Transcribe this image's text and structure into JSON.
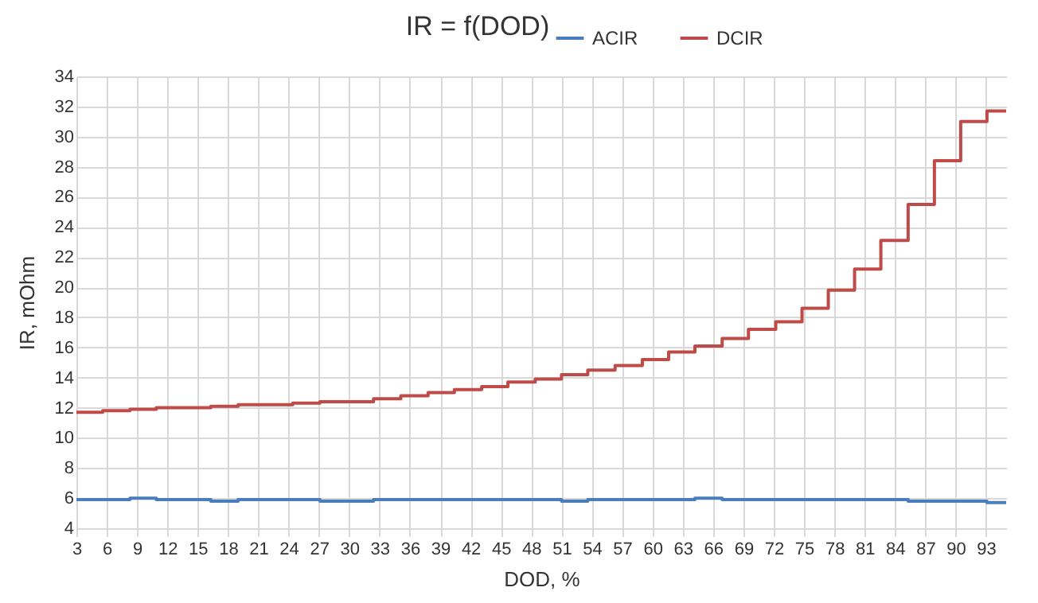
{
  "chart_data": {
    "type": "step",
    "title": "IR = f(DOD)",
    "xlabel": "DOD, %",
    "ylabel": "IR, mOhm",
    "x": [
      3,
      5.6,
      8.3,
      10.9,
      13.6,
      16.3,
      19,
      21.7,
      24.4,
      27.1,
      29.8,
      32.4,
      35.1,
      37.8,
      40.4,
      43.1,
      45.7,
      48.4,
      51,
      53.6,
      56.3,
      59,
      61.6,
      64.2,
      66.9,
      69.5,
      72.2,
      74.8,
      77.4,
      80,
      82.6,
      85.3,
      87.9,
      90.5,
      93.1,
      95
    ],
    "series": [
      {
        "name": "ACIR",
        "color": "#4a7ebb",
        "values": [
          5.9,
          5.9,
          6.0,
          5.9,
          5.9,
          5.8,
          5.9,
          5.9,
          5.9,
          5.8,
          5.8,
          5.9,
          5.9,
          5.9,
          5.9,
          5.9,
          5.9,
          5.9,
          5.8,
          5.9,
          5.9,
          5.9,
          5.9,
          6.0,
          5.9,
          5.9,
          5.9,
          5.9,
          5.9,
          5.9,
          5.9,
          5.8,
          5.8,
          5.8,
          5.7,
          5.7
        ]
      },
      {
        "name": "DCIR",
        "color": "#be4b48",
        "values": [
          11.7,
          11.8,
          11.9,
          12.0,
          12.0,
          12.1,
          12.2,
          12.2,
          12.3,
          12.4,
          12.4,
          12.6,
          12.8,
          13.0,
          13.2,
          13.4,
          13.7,
          13.9,
          14.2,
          14.5,
          14.8,
          15.2,
          15.7,
          16.1,
          16.6,
          17.2,
          17.7,
          18.6,
          19.8,
          21.2,
          23.1,
          25.5,
          28.4,
          31.0,
          31.7,
          31.7
        ]
      }
    ],
    "xlim": [
      3,
      95
    ],
    "xticks": [
      3,
      6,
      9,
      12,
      15,
      18,
      21,
      24,
      27,
      30,
      33,
      36,
      39,
      42,
      45,
      48,
      51,
      54,
      57,
      60,
      63,
      66,
      69,
      72,
      75,
      78,
      81,
      84,
      87,
      90,
      93
    ],
    "ylim": [
      4,
      34
    ],
    "yticks": [
      4,
      6,
      8,
      10,
      12,
      14,
      16,
      18,
      20,
      22,
      24,
      26,
      28,
      30,
      32,
      34
    ],
    "grid": true,
    "legend": "top",
    "marker": "none",
    "line_style": "solid"
  }
}
